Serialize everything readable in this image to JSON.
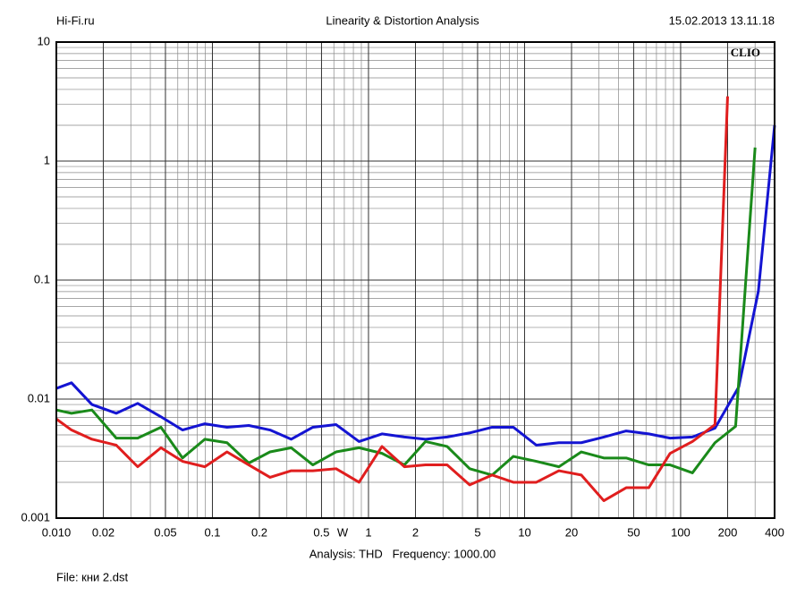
{
  "header": {
    "left": "Hi-Fi.ru",
    "right": "15.02.2013 13.11.18"
  },
  "footer": {
    "file": "File: кни 2.dst"
  },
  "chart_data": {
    "type": "line",
    "title": "Linearity & Distortion Analysis",
    "watermark": "CLIO",
    "x_label": "Analysis: THD   Frequency: 1000.00",
    "x_unit": "W",
    "xscale": "log",
    "yscale": "log",
    "grid": true,
    "xlim": [
      0.01,
      400
    ],
    "ylim": [
      0.001,
      10
    ],
    "xticks": [
      {
        "value": 0.01,
        "label": "0.010"
      },
      0.02,
      0.05,
      0.1,
      0.2,
      0.5,
      1,
      2,
      5,
      10,
      20,
      50,
      100,
      200,
      400
    ],
    "yticks": [
      0.001,
      0.01,
      0.1,
      1,
      10
    ],
    "series": [
      {
        "color": "#1414d2",
        "x": [
          0.01,
          0.0125,
          0.0169,
          0.0242,
          0.0332,
          0.0468,
          0.0643,
          0.0894,
          0.124,
          0.171,
          0.234,
          0.32,
          0.44,
          0.62,
          0.87,
          1.22,
          1.7,
          2.32,
          3.19,
          4.45,
          6.2,
          8.48,
          11.9,
          16.6,
          23.1,
          32.2,
          44.8,
          62.5,
          85.6,
          119,
          166,
          236,
          315,
          400
        ],
        "values": [
          0.0123,
          0.0137,
          0.009,
          0.0076,
          0.0092,
          0.0071,
          0.0055,
          0.0062,
          0.0058,
          0.006,
          0.0055,
          0.0046,
          0.0058,
          0.0061,
          0.0044,
          0.0051,
          0.0048,
          0.0046,
          0.0048,
          0.0052,
          0.0058,
          0.0058,
          0.0041,
          0.0043,
          0.0043,
          0.0048,
          0.0054,
          0.0051,
          0.0047,
          0.0048,
          0.0057,
          0.0127,
          0.081,
          2.0
        ]
      },
      {
        "color": "#1a8a1a",
        "x": [
          0.01,
          0.0125,
          0.0169,
          0.0242,
          0.0332,
          0.0468,
          0.0643,
          0.0894,
          0.124,
          0.171,
          0.234,
          0.32,
          0.44,
          0.62,
          0.87,
          1.22,
          1.7,
          2.32,
          3.19,
          4.45,
          6.2,
          8.48,
          11.9,
          16.6,
          23.1,
          32.2,
          44.8,
          62.5,
          85.6,
          119,
          166,
          225,
          300
        ],
        "values": [
          0.0081,
          0.0076,
          0.0081,
          0.0047,
          0.0047,
          0.0058,
          0.0032,
          0.0046,
          0.0043,
          0.0029,
          0.0036,
          0.0039,
          0.0028,
          0.0036,
          0.0039,
          0.0035,
          0.0028,
          0.0044,
          0.004,
          0.0026,
          0.0023,
          0.0033,
          0.003,
          0.0027,
          0.0036,
          0.0032,
          0.0032,
          0.0028,
          0.0028,
          0.0024,
          0.0043,
          0.0059,
          1.3
        ]
      },
      {
        "color": "#e01e1e",
        "x": [
          0.01,
          0.0125,
          0.0169,
          0.0242,
          0.0332,
          0.0468,
          0.0643,
          0.0894,
          0.124,
          0.171,
          0.234,
          0.32,
          0.44,
          0.62,
          0.87,
          1.22,
          1.7,
          2.32,
          3.19,
          4.45,
          6.2,
          8.48,
          11.9,
          16.6,
          23.1,
          32.2,
          44.8,
          62.5,
          85.6,
          119,
          166,
          200
        ],
        "values": [
          0.0068,
          0.0055,
          0.0046,
          0.0041,
          0.0027,
          0.0039,
          0.003,
          0.0027,
          0.0036,
          0.0028,
          0.0022,
          0.0025,
          0.0025,
          0.0026,
          0.002,
          0.004,
          0.0027,
          0.0028,
          0.0028,
          0.0019,
          0.0023,
          0.002,
          0.002,
          0.0025,
          0.0023,
          0.0014,
          0.0018,
          0.0018,
          0.0035,
          0.0044,
          0.0061,
          3.5
        ]
      }
    ]
  }
}
